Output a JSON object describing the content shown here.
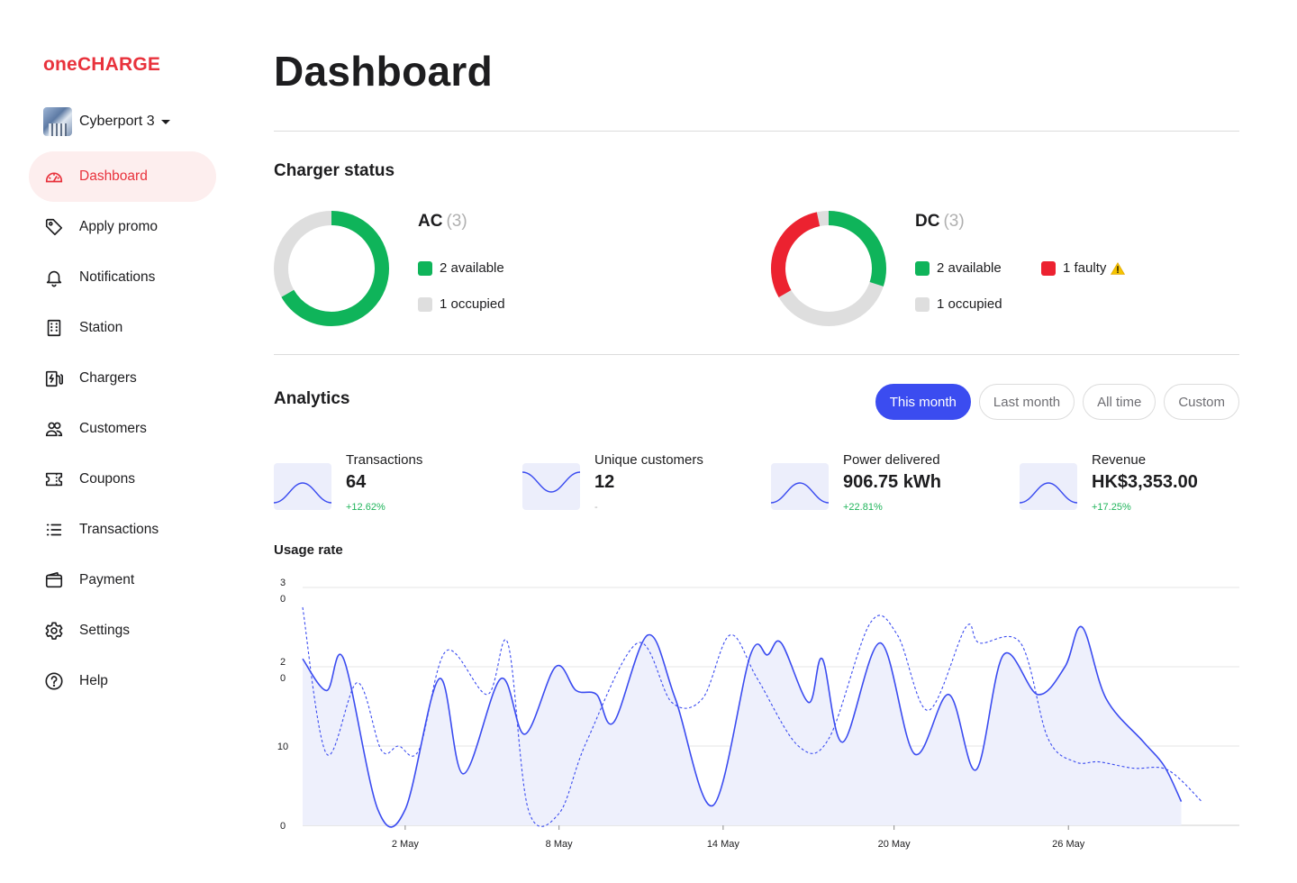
{
  "sidebar": {
    "logo": {
      "one": "one",
      "charge": "CHARGE"
    },
    "station": "Cyberport 3",
    "items": [
      {
        "label": "Dashboard",
        "icon": "gauge-icon",
        "active": true
      },
      {
        "label": "Apply promo",
        "icon": "tag-icon"
      },
      {
        "label": "Notifications",
        "icon": "bell-icon"
      },
      {
        "label": "Station",
        "icon": "building-icon"
      },
      {
        "label": "Chargers",
        "icon": "charger-icon"
      },
      {
        "label": "Customers",
        "icon": "users-icon"
      },
      {
        "label": "Coupons",
        "icon": "ticket-icon"
      },
      {
        "label": "Transactions",
        "icon": "list-icon"
      },
      {
        "label": "Payment",
        "icon": "wallet-icon"
      },
      {
        "label": "Settings",
        "icon": "gear-icon"
      },
      {
        "label": "Help",
        "icon": "help-icon"
      }
    ]
  },
  "page": {
    "title": "Dashboard"
  },
  "charger_status": {
    "title": "Charger status",
    "ac": {
      "label": "AC",
      "count": "(3)",
      "available": "2 available",
      "occupied": "1 occupied"
    },
    "dc": {
      "label": "DC",
      "count": "(3)",
      "available": "2 available",
      "occupied": "1 occupied",
      "faulty": "1 faulty"
    },
    "colors": {
      "available": "#0fb45a",
      "occupied": "#dedede",
      "faulty": "#ec2230",
      "warning": "#f5c400"
    }
  },
  "analytics": {
    "title": "Analytics",
    "filters": [
      "This month",
      "Last month",
      "All time",
      "Custom"
    ],
    "active_filter": "This month",
    "accent": "#3b4cf0",
    "kpis": [
      {
        "label": "Transactions",
        "value": "64",
        "change": "+12.62%",
        "spark": "hill"
      },
      {
        "label": "Unique customers",
        "value": "12",
        "change": "-",
        "spark": "valley"
      },
      {
        "label": "Power delivered",
        "value": "906.75 kWh",
        "change": "+22.81%",
        "spark": "hill"
      },
      {
        "label": "Revenue",
        "value": "HK$3,353.00",
        "change": "+17.25%",
        "spark": "hill"
      }
    ]
  },
  "usage": {
    "title": "Usage rate"
  },
  "chart_data": {
    "type": "line",
    "title": "Usage rate",
    "xlabel": "",
    "ylabel": "",
    "ylim": [
      0,
      30
    ],
    "y_ticks": [
      {
        "value": 30,
        "label": "3\n0"
      },
      {
        "value": 20,
        "label": "2\n0"
      },
      {
        "value": 10,
        "label": "10"
      },
      {
        "value": 0,
        "label": "0"
      }
    ],
    "x_range": [
      0,
      27.4
    ],
    "x_ticks": [
      {
        "x": 3,
        "label": "2 May"
      },
      {
        "x": 7.5,
        "label": "8 May"
      },
      {
        "x": 12.3,
        "label": "14 May"
      },
      {
        "x": 17.3,
        "label": "20 May"
      },
      {
        "x": 22.4,
        "label": "26 May"
      }
    ],
    "grid": true,
    "series": [
      {
        "style": "solid-area",
        "points": [
          [
            0,
            21
          ],
          [
            0.7,
            17
          ],
          [
            1.2,
            21
          ],
          [
            2.2,
            2
          ],
          [
            3,
            2
          ],
          [
            4,
            18.5
          ],
          [
            4.7,
            6.5
          ],
          [
            5.8,
            18.5
          ],
          [
            6.5,
            11.5
          ],
          [
            7.4,
            20
          ],
          [
            8,
            17
          ],
          [
            8.6,
            16.5
          ],
          [
            9.1,
            13
          ],
          [
            10.1,
            24
          ],
          [
            10.9,
            16
          ],
          [
            12,
            2.5
          ],
          [
            13.1,
            21.5
          ],
          [
            13.6,
            21.5
          ],
          [
            14,
            23
          ],
          [
            14.8,
            15.5
          ],
          [
            15.2,
            21
          ],
          [
            15.8,
            10.5
          ],
          [
            16.9,
            23
          ],
          [
            17.9,
            9
          ],
          [
            18.9,
            16.5
          ],
          [
            19.7,
            7
          ],
          [
            20.5,
            21.5
          ],
          [
            21.5,
            16.5
          ],
          [
            22.3,
            20
          ],
          [
            22.8,
            25
          ],
          [
            23.5,
            16
          ],
          [
            24.6,
            10.5
          ],
          [
            25.2,
            7.5
          ],
          [
            25.7,
            3
          ]
        ]
      },
      {
        "style": "dashed",
        "points": [
          [
            0,
            27.5
          ],
          [
            0.7,
            9
          ],
          [
            1.6,
            18
          ],
          [
            2.3,
            9.5
          ],
          [
            2.8,
            10
          ],
          [
            3.4,
            9.5
          ],
          [
            4.2,
            22
          ],
          [
            5.4,
            16.5
          ],
          [
            6,
            23
          ],
          [
            6.6,
            2
          ],
          [
            7.5,
            1.5
          ],
          [
            8.3,
            10.5
          ],
          [
            9.8,
            23
          ],
          [
            10.8,
            15.5
          ],
          [
            11.7,
            16
          ],
          [
            12.5,
            24
          ],
          [
            13.3,
            18.5
          ],
          [
            14.5,
            10
          ],
          [
            15.4,
            11
          ],
          [
            16.6,
            25.5
          ],
          [
            17.4,
            24
          ],
          [
            18.3,
            14.5
          ],
          [
            19.4,
            25
          ],
          [
            19.8,
            23
          ],
          [
            21,
            23
          ],
          [
            21.8,
            11
          ],
          [
            22.6,
            8
          ],
          [
            23.3,
            8
          ],
          [
            24.3,
            7.2
          ],
          [
            25.3,
            7
          ],
          [
            26.3,
            3
          ]
        ]
      }
    ]
  }
}
